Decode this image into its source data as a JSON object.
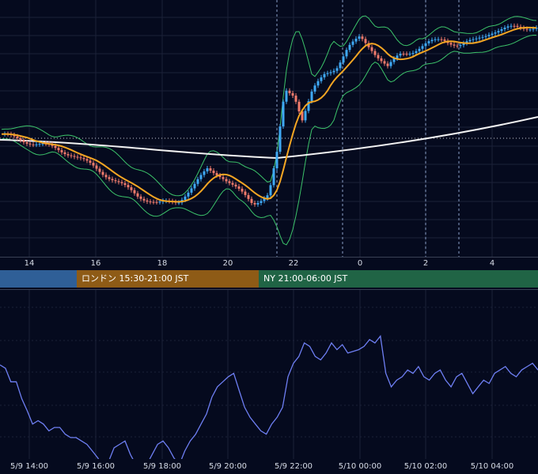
{
  "chart_data": [
    {
      "type": "candlestick",
      "title": "",
      "x_ticks": [
        "14",
        "16",
        "18",
        "20",
        "22",
        "0",
        "2",
        "4"
      ],
      "overlays": [
        "bollinger_bands",
        "moving_average_short",
        "moving_average_long"
      ],
      "session_markers": [
        "22",
        "23",
        "0",
        "2",
        "3"
      ],
      "grid": true
    },
    {
      "type": "line",
      "title": "",
      "x_ticks": [
        "5/9 14:00",
        "5/9 16:00",
        "5/9 18:00",
        "5/9 20:00",
        "5/9 22:00",
        "5/10 00:00",
        "5/10 02:00",
        "5/10 04:00"
      ],
      "series": [
        {
          "values": [
            65,
            63,
            55,
            55,
            45,
            38,
            30,
            32,
            30,
            26,
            28,
            28,
            24,
            22,
            22,
            20,
            18,
            14,
            10,
            5,
            8,
            16,
            18,
            20,
            12,
            6,
            4,
            6,
            12,
            18,
            20,
            16,
            10,
            6,
            14,
            20,
            24,
            30,
            36,
            46,
            52,
            55,
            58,
            60,
            50,
            40,
            34,
            30,
            26,
            24,
            30,
            34,
            40,
            58,
            66,
            70,
            78,
            76,
            70,
            68,
            72,
            78,
            74,
            77,
            72,
            73,
            74,
            76,
            80,
            78,
            82,
            60,
            52,
            56,
            58,
            62,
            60,
            64,
            58,
            56,
            60,
            62,
            56,
            52,
            58,
            60,
            54,
            48,
            52,
            56,
            54,
            60,
            62,
            64,
            60,
            58,
            62,
            64,
            66,
            62
          ]
        }
      ],
      "grid": true
    }
  ],
  "colors": {
    "background": "#050a1e",
    "bull": "#3fa9f5",
    "bear": "#f07b6c",
    "band": "#3cc36a",
    "ma_short": "#f5a623",
    "ma_long": "#f2f2f2",
    "oscillator": "#6e7ff3",
    "grid": "#1b2138"
  },
  "sessions": [
    {
      "label": "",
      "color": "#2f5f97"
    },
    {
      "label": "ロンドン 15:30-21:00 JST",
      "color": "#8e5b16"
    },
    {
      "label": "NY 21:00-06:00 JST",
      "color": "#206445"
    }
  ]
}
